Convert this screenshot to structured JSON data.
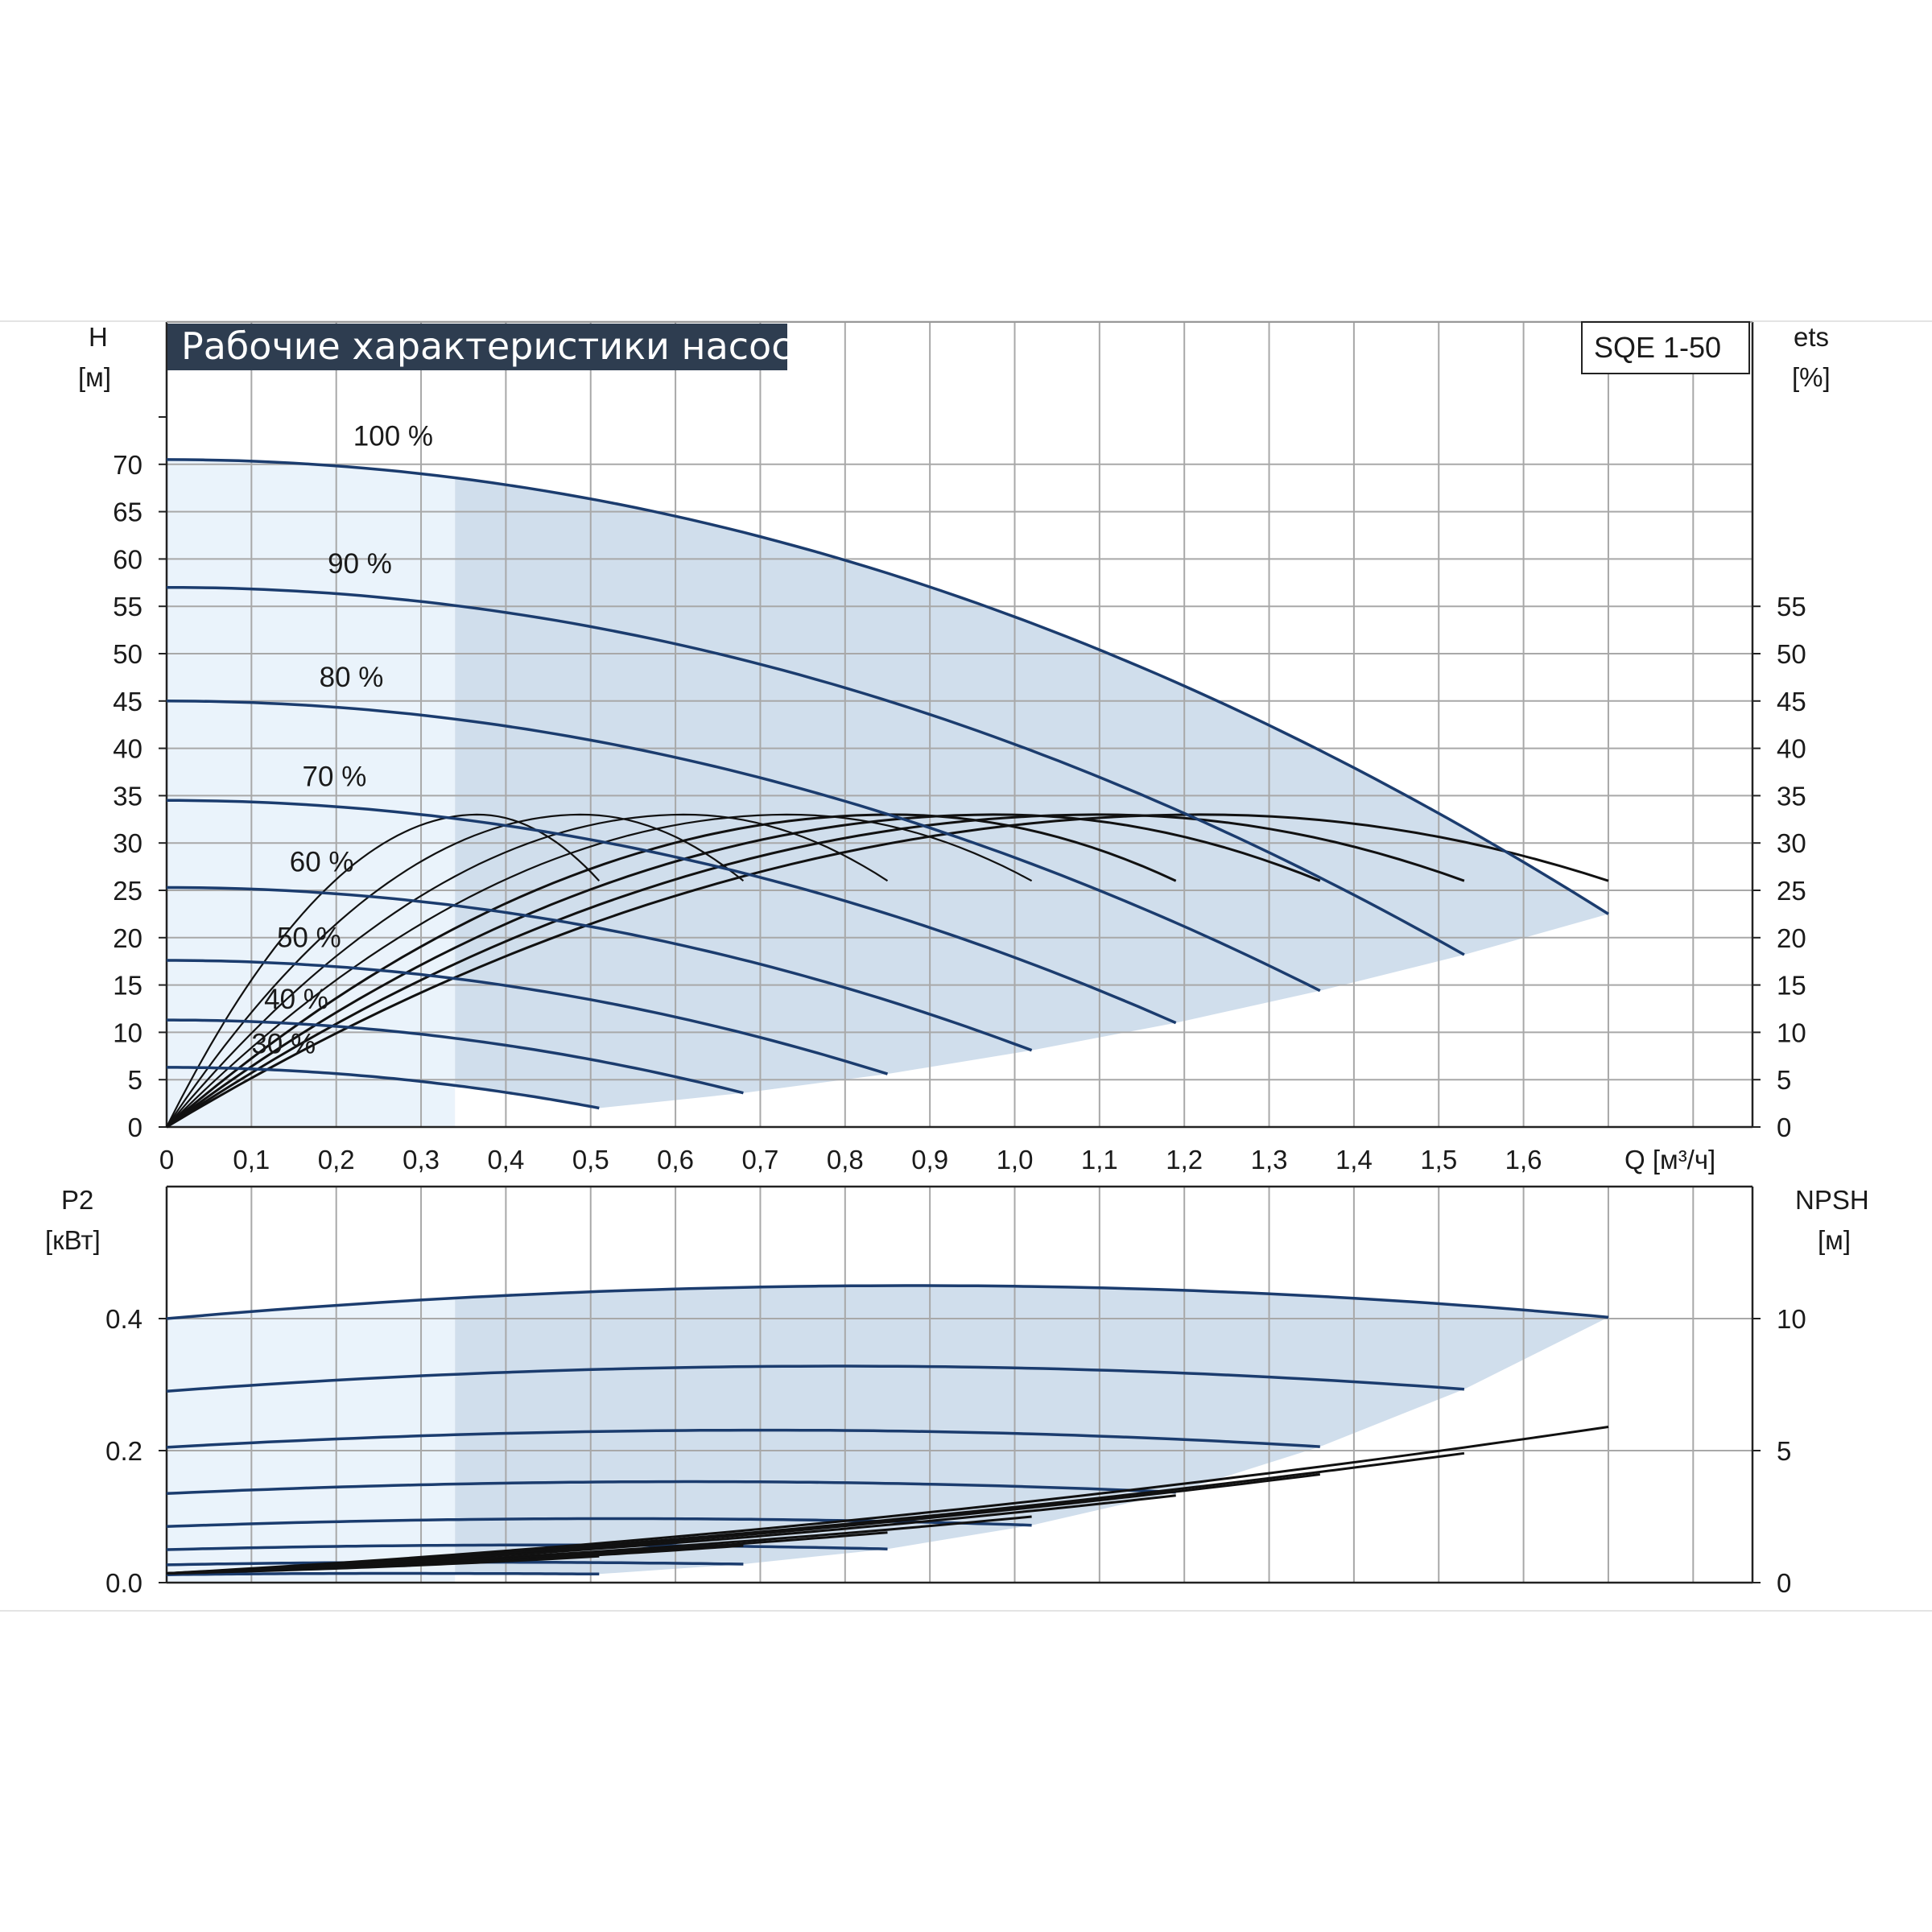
{
  "chart_data": [
    {
      "type": "line",
      "title": "Рабочие характеристики насоса",
      "model": "SQE 1-50",
      "xlabel": "Q [м³/ч]",
      "ylabel": {
        "name": "H",
        "unit": "[м]"
      },
      "y2label": {
        "name": "ets",
        "unit": "[%]"
      },
      "xlim": [
        0,
        1.87
      ],
      "ylim": [
        0,
        75
      ],
      "x_ticks": [
        "0",
        "0,1",
        "0,2",
        "0,3",
        "0,4",
        "0,5",
        "0,6",
        "0,7",
        "0,8",
        "0,9",
        "1,0",
        "1,1",
        "1,2",
        "1,3",
        "1,4",
        "1,5",
        "1,6"
      ],
      "y_ticks": [
        "0",
        "5",
        "10",
        "15",
        "20",
        "25",
        "30",
        "35",
        "40",
        "45",
        "50",
        "55",
        "60",
        "65",
        "70"
      ],
      "y2_ticks": [
        "0",
        "5",
        "10",
        "15",
        "20",
        "25",
        "30",
        "35",
        "40",
        "45",
        "50",
        "55"
      ],
      "grid": true,
      "shaded_region_q_start": 0.34,
      "head_curves": [
        {
          "label": "100 %",
          "h0": 70.5,
          "qmax": 1.7,
          "hend": 22.5,
          "label_x": 0.22,
          "label_y": 72
        },
        {
          "label": "90 %",
          "h0": 57,
          "qmax": 1.53,
          "hend": 18.2,
          "label_x": 0.19,
          "label_y": 58.5
        },
        {
          "label": "80 %",
          "h0": 45,
          "qmax": 1.36,
          "hend": 14.4,
          "label_x": 0.18,
          "label_y": 46.5
        },
        {
          "label": "70 %",
          "h0": 34.5,
          "qmax": 1.19,
          "hend": 11,
          "label_x": 0.16,
          "label_y": 36
        },
        {
          "label": "60 %",
          "h0": 25.3,
          "qmax": 1.02,
          "hend": 8.1,
          "label_x": 0.145,
          "label_y": 27
        },
        {
          "label": "50 %",
          "h0": 17.6,
          "qmax": 0.85,
          "hend": 5.6,
          "label_x": 0.13,
          "label_y": 19
        },
        {
          "label": "40 %",
          "h0": 11.3,
          "qmax": 0.68,
          "hend": 3.6,
          "label_x": 0.115,
          "label_y": 12.5
        },
        {
          "label": "30 %",
          "h0": 6.3,
          "qmax": 0.51,
          "hend": 2.0,
          "label_x": 0.1,
          "label_y": 7.8
        }
      ],
      "efficiency_curves": [
        {
          "qmax": 0.51,
          "eta_end": 26
        },
        {
          "qmax": 0.68,
          "eta_end": 26
        },
        {
          "qmax": 0.85,
          "eta_end": 26
        },
        {
          "qmax": 1.02,
          "eta_end": 26
        },
        {
          "qmax": 1.19,
          "eta_end": 26
        },
        {
          "qmax": 1.36,
          "eta_end": 26
        },
        {
          "qmax": 1.53,
          "eta_end": 26
        },
        {
          "qmax": 1.7,
          "eta_end": 26
        }
      ],
      "eta_max": 33
    },
    {
      "type": "line",
      "ylabel": {
        "name": "P2",
        "unit": "[кВт]"
      },
      "y2label": {
        "name": "NPSH",
        "unit": "[м]"
      },
      "xlim": [
        0,
        1.87
      ],
      "ylim": [
        0,
        0.5
      ],
      "y_ticks": [
        "0.0",
        "0.2",
        "0.4"
      ],
      "y2_ticks": [
        "0",
        "5",
        "10"
      ],
      "y2lim": [
        0,
        12.5
      ],
      "grid": true,
      "power_curves": [
        {
          "qmax": 1.7,
          "p0": 0.4,
          "pmax": 0.45,
          "pend": 0.402
        },
        {
          "qmax": 1.53,
          "p0": 0.29,
          "pmax": 0.328,
          "pend": 0.293
        },
        {
          "qmax": 1.36,
          "p0": 0.205,
          "pmax": 0.231,
          "pend": 0.206
        },
        {
          "qmax": 1.19,
          "p0": 0.135,
          "pmax": 0.153,
          "pend": 0.137
        },
        {
          "qmax": 1.02,
          "p0": 0.085,
          "pmax": 0.097,
          "pend": 0.087
        },
        {
          "qmax": 0.85,
          "p0": 0.05,
          "pmax": 0.057,
          "pend": 0.051
        },
        {
          "qmax": 0.68,
          "p0": 0.027,
          "pmax": 0.031,
          "pend": 0.028
        },
        {
          "qmax": 0.51,
          "p0": 0.012,
          "pmax": 0.014,
          "pend": 0.013
        }
      ],
      "npsh_curves": [
        {
          "qmax": 1.7,
          "npsh_end": 5.9
        },
        {
          "qmax": 1.53,
          "npsh_end": 4.9
        },
        {
          "qmax": 1.36,
          "npsh_end": 4.1
        },
        {
          "qmax": 1.19,
          "npsh_end": 3.3
        },
        {
          "qmax": 1.02,
          "npsh_end": 2.5
        },
        {
          "qmax": 0.85,
          "npsh_end": 1.9
        },
        {
          "qmax": 0.68,
          "npsh_end": 1.4
        },
        {
          "qmax": 0.51,
          "npsh_end": 1.0
        }
      ]
    }
  ],
  "colors": {
    "curve_blue": "#1b3c6e",
    "curve_black": "#111111",
    "shade_dark": "#d0deec",
    "shade_light": "#eaf3fb",
    "grid": "#a8a8a8",
    "title_bg": "#2e3d50"
  }
}
